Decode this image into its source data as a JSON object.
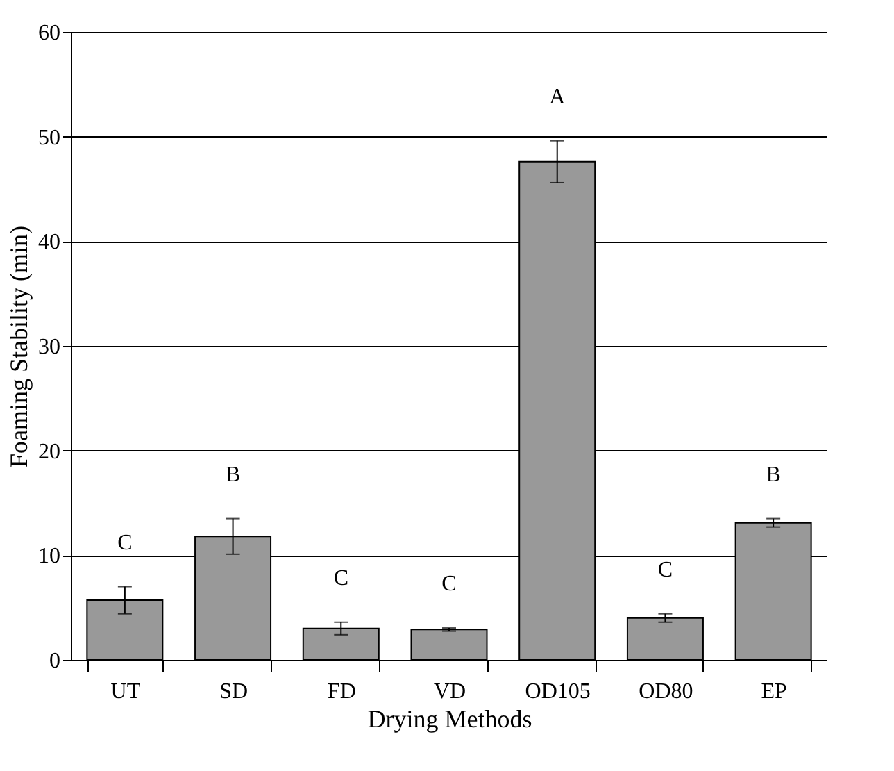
{
  "chart_data": {
    "type": "bar",
    "xlabel": "Drying Methods",
    "ylabel": "Foaming Stability (min)",
    "categories": [
      "UT",
      "SD",
      "FD",
      "VD",
      "OD105",
      "OD80",
      "EP"
    ],
    "values": [
      5.7,
      11.8,
      3.0,
      2.9,
      47.6,
      4.0,
      13.1
    ],
    "errors": [
      1.3,
      1.7,
      0.6,
      0.15,
      2.0,
      0.4,
      0.4
    ],
    "color": "#999999",
    "ylim": [
      0,
      60
    ],
    "yticks": [
      0,
      10,
      20,
      30,
      40,
      50,
      60
    ],
    "grid": "y",
    "annotations": [
      "C",
      "B",
      "C",
      "C",
      "A",
      "C",
      "B"
    ]
  }
}
